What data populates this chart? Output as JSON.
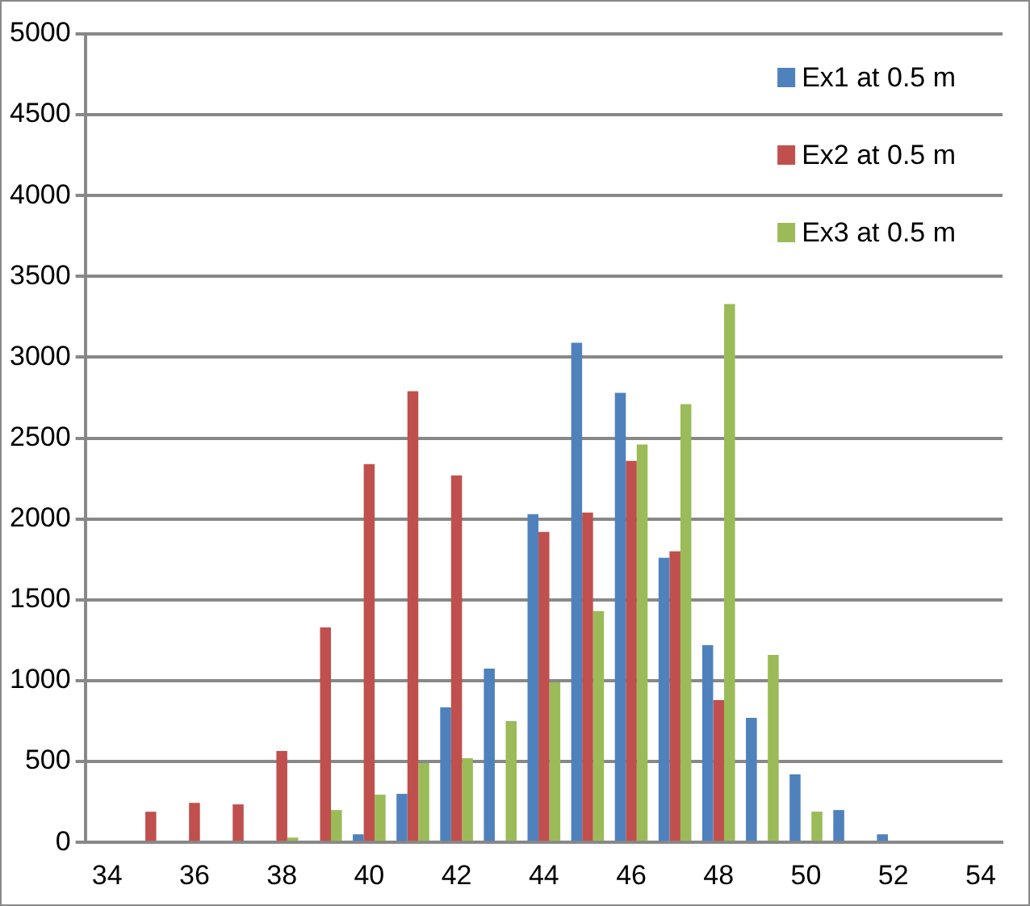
{
  "chart_data": {
    "type": "bar",
    "categories": [
      "34",
      null,
      "36",
      null,
      "38",
      null,
      "40",
      null,
      "42",
      null,
      "44",
      null,
      "46",
      null,
      "48",
      null,
      "50",
      null,
      "52",
      null,
      "54"
    ],
    "series": [
      {
        "name": "Ex1 at 0.5 m",
        "color": "#4f81bd",
        "values": [
          0,
          0,
          0,
          0,
          0,
          0,
          50,
          300,
          835,
          1075,
          2030,
          3090,
          2780,
          1760,
          1220,
          770,
          420,
          200,
          50,
          0,
          0
        ]
      },
      {
        "name": "Ex2 at 0.5 m",
        "color": "#c0504d",
        "values": [
          0,
          190,
          245,
          235,
          565,
          1330,
          2340,
          2790,
          2270,
          0,
          1920,
          2040,
          2360,
          1800,
          880,
          0,
          0,
          0,
          0,
          0,
          0
        ]
      },
      {
        "name": "Ex3 at 0.5 m",
        "color": "#9bbb59",
        "values": [
          0,
          0,
          0,
          0,
          30,
          200,
          295,
          490,
          520,
          750,
          990,
          1430,
          2460,
          2710,
          3330,
          1160,
          190,
          0,
          0,
          0,
          0
        ]
      }
    ],
    "ylim": [
      0,
      5000
    ],
    "yticks": [
      0,
      500,
      1000,
      1500,
      2000,
      2500,
      3000,
      3500,
      4000,
      4500,
      5000
    ],
    "grid": "y",
    "legend": "top right"
  }
}
